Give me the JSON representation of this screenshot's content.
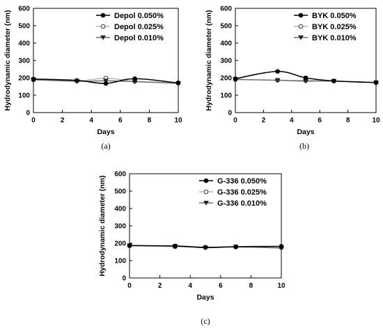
{
  "chart_data": [
    {
      "type": "line",
      "panel_label": "(a)",
      "xlabel": "Days",
      "ylabel": "Hydrodynamic diameter (nm)",
      "xlim": [
        0,
        10
      ],
      "ylim": [
        0,
        600
      ],
      "xticks": [
        0,
        2,
        4,
        6,
        8,
        10
      ],
      "yticks": [
        0,
        100,
        200,
        300,
        400,
        500,
        600
      ],
      "grid": false,
      "legend_position": "top-right",
      "series": [
        {
          "name": "Depol 0.050%",
          "marker": "filled-circle",
          "color": "#000000",
          "x": [
            0,
            3,
            5,
            7,
            10
          ],
          "y": [
            193,
            185,
            168,
            195,
            170
          ]
        },
        {
          "name": "Depol 0.025%",
          "marker": "open-circle",
          "color": "#b0b0b0",
          "x": [
            0,
            3,
            5,
            7,
            10
          ],
          "y": [
            188,
            182,
            198,
            180,
            172
          ]
        },
        {
          "name": "Depol 0.010%",
          "marker": "filled-triangle-down",
          "color": "#555555",
          "x": [
            0,
            3,
            5,
            7,
            10
          ],
          "y": [
            190,
            180,
            183,
            178,
            168
          ]
        }
      ]
    },
    {
      "type": "line",
      "panel_label": "(b)",
      "xlabel": "Days",
      "ylabel": "Hydrodynamic diameter (nm)",
      "xlim": [
        0,
        10
      ],
      "ylim": [
        0,
        600
      ],
      "xticks": [
        0,
        2,
        4,
        6,
        8,
        10
      ],
      "yticks": [
        0,
        100,
        200,
        300,
        400,
        500,
        600
      ],
      "grid": false,
      "legend_position": "top-right",
      "series": [
        {
          "name": "BYK 0.050%",
          "marker": "filled-circle",
          "color": "#000000",
          "x": [
            0,
            3,
            5,
            7,
            10
          ],
          "y": [
            195,
            237,
            200,
            182,
            173
          ]
        },
        {
          "name": "BYK 0.025%",
          "marker": "open-circle",
          "color": "#b0b0b0",
          "x": [
            0,
            3,
            5,
            7,
            10
          ],
          "y": [
            190,
            186,
            185,
            182,
            172
          ]
        },
        {
          "name": "BYK 0.010%",
          "marker": "filled-triangle-down",
          "color": "#555555",
          "x": [
            0,
            3,
            5,
            7,
            10
          ],
          "y": [
            191,
            186,
            181,
            181,
            173
          ]
        }
      ]
    },
    {
      "type": "line",
      "panel_label": "(c)",
      "xlabel": "Days",
      "ylabel": "Hydrodynamic diameter (nm)",
      "xlim": [
        0,
        10
      ],
      "ylim": [
        0,
        600
      ],
      "xticks": [
        0,
        2,
        4,
        6,
        8,
        10
      ],
      "yticks": [
        0,
        100,
        200,
        300,
        400,
        500,
        600
      ],
      "grid": false,
      "legend_position": "top-right",
      "series": [
        {
          "name": "G-336 0.050%",
          "marker": "filled-circle",
          "color": "#000000",
          "x": [
            0,
            3,
            5,
            7,
            10
          ],
          "y": [
            187,
            184,
            176,
            180,
            182
          ]
        },
        {
          "name": "G-336 0.025%",
          "marker": "open-circle",
          "color": "#b0b0b0",
          "x": [
            0,
            3,
            5,
            7,
            10
          ],
          "y": [
            185,
            180,
            177,
            178,
            175
          ]
        },
        {
          "name": "G-336 0.010%",
          "marker": "filled-triangle-down",
          "color": "#555555",
          "x": [
            0,
            3,
            5,
            7,
            10
          ],
          "y": [
            186,
            183,
            174,
            179,
            172
          ]
        }
      ]
    }
  ]
}
